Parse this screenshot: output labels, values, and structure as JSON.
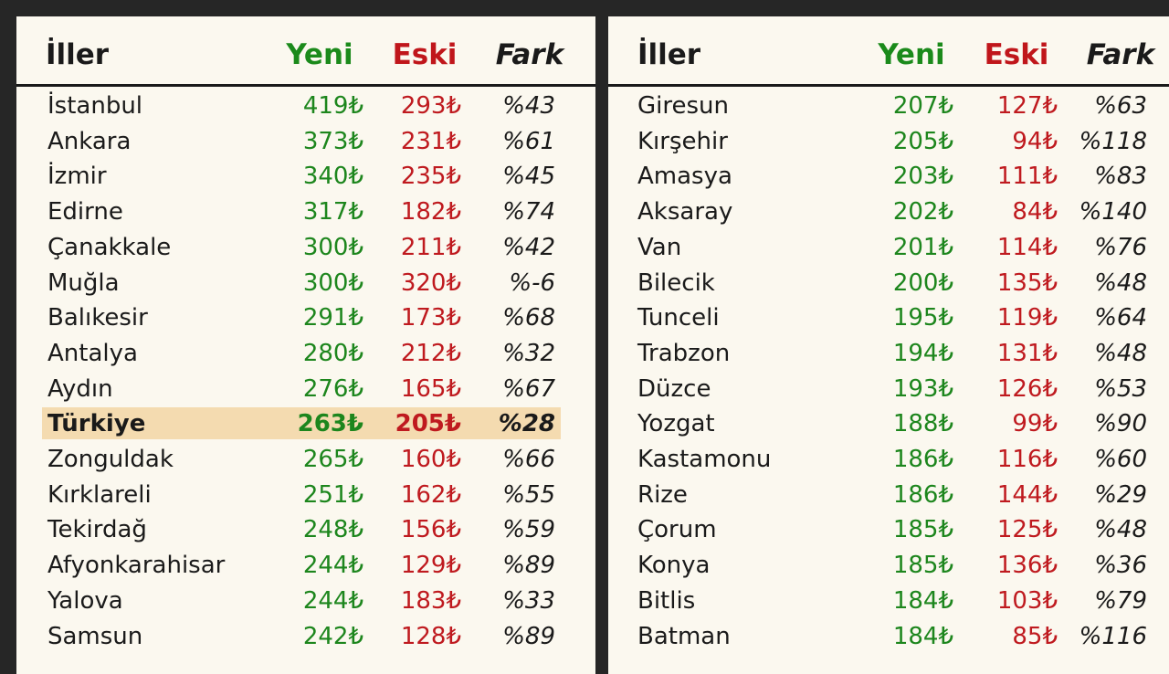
{
  "headers": {
    "name": "İller",
    "new": "Yeni",
    "old": "Eski",
    "diff": "Fark"
  },
  "colors": {
    "new": "#1d861d",
    "old": "#bf1a1f",
    "highlight": "#f4dbb0",
    "background": "#fbf8ef"
  },
  "left_rows": [
    {
      "name": "İstanbul",
      "new": "419₺",
      "old": "293₺",
      "diff": "%43"
    },
    {
      "name": "Ankara",
      "new": "373₺",
      "old": "231₺",
      "diff": "%61"
    },
    {
      "name": "İzmir",
      "new": "340₺",
      "old": "235₺",
      "diff": "%45"
    },
    {
      "name": "Edirne",
      "new": "317₺",
      "old": "182₺",
      "diff": "%74"
    },
    {
      "name": "Çanakkale",
      "new": "300₺",
      "old": "211₺",
      "diff": "%42"
    },
    {
      "name": "Muğla",
      "new": "300₺",
      "old": "320₺",
      "diff": "%-6"
    },
    {
      "name": "Balıkesir",
      "new": "291₺",
      "old": "173₺",
      "diff": "%68"
    },
    {
      "name": "Antalya",
      "new": "280₺",
      "old": "212₺",
      "diff": "%32"
    },
    {
      "name": "Aydın",
      "new": "276₺",
      "old": "165₺",
      "diff": "%67"
    },
    {
      "name": "Türkiye",
      "new": "263₺",
      "old": "205₺",
      "diff": "%28",
      "highlight": true
    },
    {
      "name": "Zonguldak",
      "new": "265₺",
      "old": "160₺",
      "diff": "%66"
    },
    {
      "name": "Kırklareli",
      "new": "251₺",
      "old": "162₺",
      "diff": "%55"
    },
    {
      "name": "Tekirdağ",
      "new": "248₺",
      "old": "156₺",
      "diff": "%59"
    },
    {
      "name": "Afyonkarahisar",
      "new": "244₺",
      "old": "129₺",
      "diff": "%89"
    },
    {
      "name": "Yalova",
      "new": "244₺",
      "old": "183₺",
      "diff": "%33"
    },
    {
      "name": "Samsun",
      "new": "242₺",
      "old": "128₺",
      "diff": "%89"
    }
  ],
  "right_rows": [
    {
      "name": "Giresun",
      "new": "207₺",
      "old": "127₺",
      "diff": "%63"
    },
    {
      "name": "Kırşehir",
      "new": "205₺",
      "old": "94₺",
      "diff": "%118"
    },
    {
      "name": "Amasya",
      "new": "203₺",
      "old": "111₺",
      "diff": "%83"
    },
    {
      "name": "Aksaray",
      "new": "202₺",
      "old": "84₺",
      "diff": "%140"
    },
    {
      "name": "Van",
      "new": "201₺",
      "old": "114₺",
      "diff": "%76"
    },
    {
      "name": "Bilecik",
      "new": "200₺",
      "old": "135₺",
      "diff": "%48"
    },
    {
      "name": "Tunceli",
      "new": "195₺",
      "old": "119₺",
      "diff": "%64"
    },
    {
      "name": "Trabzon",
      "new": "194₺",
      "old": "131₺",
      "diff": "%48"
    },
    {
      "name": "Düzce",
      "new": "193₺",
      "old": "126₺",
      "diff": "%53"
    },
    {
      "name": "Yozgat",
      "new": "188₺",
      "old": "99₺",
      "diff": "%90"
    },
    {
      "name": "Kastamonu",
      "new": "186₺",
      "old": "116₺",
      "diff": "%60"
    },
    {
      "name": "Rize",
      "new": "186₺",
      "old": "144₺",
      "diff": "%29"
    },
    {
      "name": "Çorum",
      "new": "185₺",
      "old": "125₺",
      "diff": "%48"
    },
    {
      "name": "Konya",
      "new": "185₺",
      "old": "136₺",
      "diff": "%36"
    },
    {
      "name": "Bitlis",
      "new": "184₺",
      "old": "103₺",
      "diff": "%79"
    },
    {
      "name": "Batman",
      "new": "184₺",
      "old": "85₺",
      "diff": "%116"
    }
  ]
}
